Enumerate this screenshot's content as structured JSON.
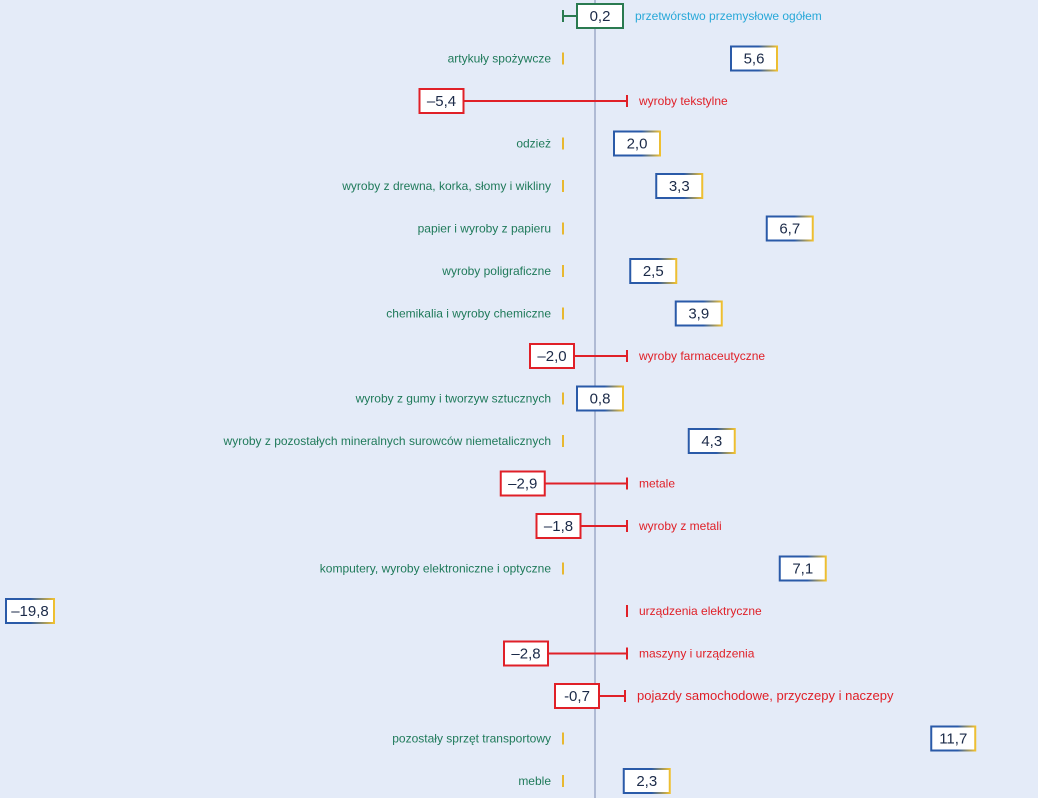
{
  "colors": {
    "background": "#e4ebf8",
    "positive_label": "#1f7a5a",
    "negative_label": "#e02028",
    "highlight_label": "#28a8d8",
    "positive_box": "#2a5aa8",
    "positive_box_accent": "#f0c030",
    "negative_box": "#e02028",
    "total_box": "#2a7a50",
    "axis": "#7a8ab0",
    "bar_start": "#c8b878",
    "bar_end": "#1a5aaa",
    "cap_positive": "#e8b830",
    "cap_negative": "#e02028"
  },
  "chart_data": {
    "type": "bar",
    "orientation": "horizontal",
    "title": "",
    "xlabel": "",
    "ylabel": "",
    "xlim": [
      -19.8,
      11.7
    ],
    "grid": false,
    "legend": "none",
    "categories": [
      "przetwórstwo przemysłowe ogółem",
      "artykuły spożywcze",
      "wyroby tekstylne",
      "odzież",
      "wyroby z drewna, korka, słomy i wikliny",
      "papier i wyroby z papieru",
      "wyroby poligraficzne",
      "chemikalia i wyroby chemiczne",
      "wyroby farmaceutyczne",
      "wyroby z gumy i tworzyw sztucznych",
      "wyroby z pozostałych mineralnych surowców niemetalicznych",
      "metale",
      "wyroby z metali",
      "komputery, wyroby elektroniczne i optyczne",
      "urządzenia elektryczne",
      "maszyny i urządzenia",
      "pojazdy samochodowe, przyczepy i naczepy",
      "pozostały sprzęt transportowy",
      "meble"
    ],
    "values": [
      0.2,
      5.6,
      -5.4,
      2.0,
      3.3,
      6.7,
      2.5,
      3.9,
      -2.0,
      0.8,
      4.3,
      -2.9,
      -1.8,
      7.1,
      -19.8,
      -2.8,
      -0.7,
      11.7,
      2.3
    ],
    "value_labels": [
      "0,2",
      "5,6",
      "–5,4",
      "2,0",
      "3,3",
      "6,7",
      "2,5",
      "3,9",
      "–2,0",
      "0,8",
      "4,3",
      "–2,9",
      "–1,8",
      "7,1",
      "–19,8",
      "–2,8",
      "-0,7",
      "11,7",
      "2,3"
    ]
  }
}
